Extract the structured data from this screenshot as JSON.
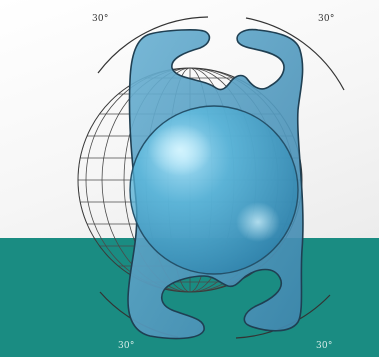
{
  "angle_labels": {
    "top_left": "30°",
    "top_right": "30°",
    "bottom_left": "30°",
    "bottom_right": "30°"
  },
  "colors": {
    "band": "#1a8c82",
    "lens": "#4aa3c8",
    "haptic": "#4f97bd",
    "outline": "#1f3f52",
    "grid": "#444444"
  },
  "icons": {
    "lens": "intraocular-lens-icon",
    "grid": "globe-grid-icon"
  }
}
